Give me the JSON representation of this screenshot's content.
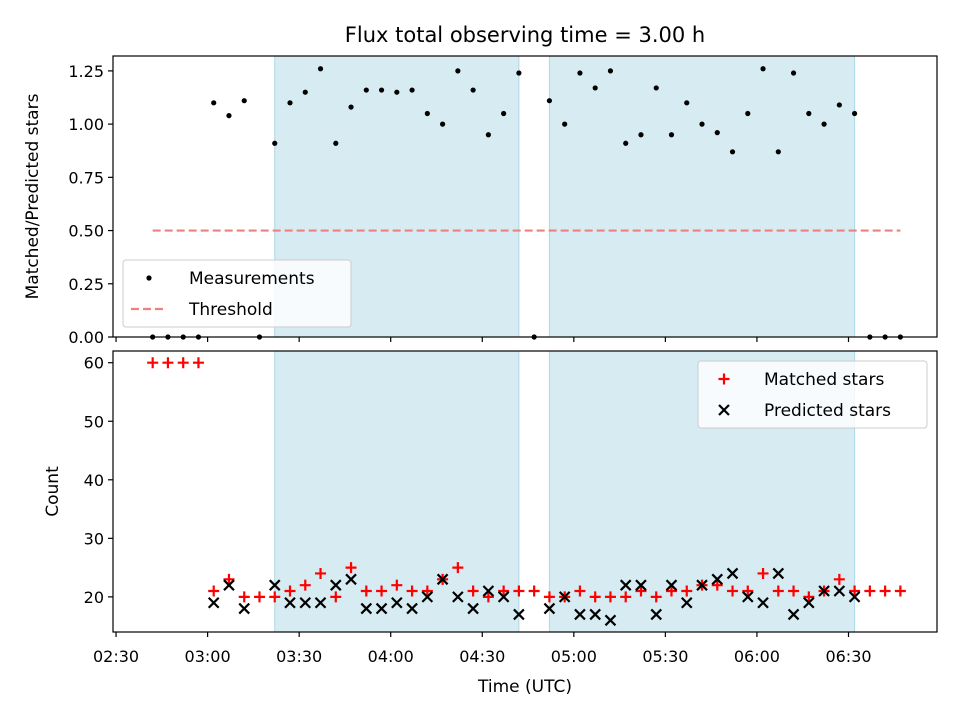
{
  "chart_data": {
    "type": "scatter",
    "title": "Flux total observing time = 3.00 h",
    "xlabel": "Time (UTC)",
    "xlim": [
      "02:29",
      "06:59"
    ],
    "x_ticks": [
      "02:30",
      "03:00",
      "03:30",
      "04:00",
      "04:30",
      "05:00",
      "05:30",
      "06:00",
      "06:30"
    ],
    "shaded_intervals": [
      [
        "03:22",
        "04:42"
      ],
      [
        "04:52",
        "06:32"
      ],
      [
        "color",
        "#add8e6"
      ]
    ],
    "panels": [
      {
        "ylabel": "Matched/Predicted stars",
        "ylim": [
          0,
          1.32
        ],
        "y_ticks": [
          "0.00",
          "0.25",
          "0.50",
          "0.75",
          "1.00",
          "1.25"
        ],
        "legend_position": "lower-left",
        "series": [
          {
            "name": "Measurements",
            "marker": "dot",
            "color": "#000000",
            "points": [
              [
                "02:42",
                0
              ],
              [
                "02:47",
                0
              ],
              [
                "02:52",
                0
              ],
              [
                "02:57",
                0
              ],
              [
                "03:02",
                1.1
              ],
              [
                "03:07",
                1.04
              ],
              [
                "03:12",
                1.11
              ],
              [
                "03:17",
                0
              ],
              [
                "03:22",
                0.91
              ],
              [
                "03:27",
                1.1
              ],
              [
                "03:32",
                1.15
              ],
              [
                "03:37",
                1.26
              ],
              [
                "03:42",
                0.91
              ],
              [
                "03:47",
                1.08
              ],
              [
                "03:52",
                1.16
              ],
              [
                "03:57",
                1.16
              ],
              [
                "04:02",
                1.15
              ],
              [
                "04:07",
                1.16
              ],
              [
                "04:12",
                1.05
              ],
              [
                "04:17",
                1.0
              ],
              [
                "04:22",
                1.25
              ],
              [
                "04:27",
                1.16
              ],
              [
                "04:32",
                0.95
              ],
              [
                "04:37",
                1.05
              ],
              [
                "04:42",
                1.24
              ],
              [
                "04:47",
                0
              ],
              [
                "04:52",
                1.11
              ],
              [
                "04:57",
                1.0
              ],
              [
                "05:02",
                1.24
              ],
              [
                "05:07",
                1.17
              ],
              [
                "05:12",
                1.25
              ],
              [
                "05:17",
                0.91
              ],
              [
                "05:22",
                0.95
              ],
              [
                "05:27",
                1.17
              ],
              [
                "05:32",
                0.95
              ],
              [
                "05:37",
                1.1
              ],
              [
                "05:42",
                1.0
              ],
              [
                "05:47",
                0.96
              ],
              [
                "05:52",
                0.87
              ],
              [
                "05:57",
                1.05
              ],
              [
                "06:02",
                1.26
              ],
              [
                "06:07",
                0.87
              ],
              [
                "06:12",
                1.24
              ],
              [
                "06:17",
                1.05
              ],
              [
                "06:22",
                1.0
              ],
              [
                "06:27",
                1.09
              ],
              [
                "06:32",
                1.05
              ],
              [
                "06:37",
                0
              ],
              [
                "06:42",
                0
              ],
              [
                "06:47",
                0
              ]
            ]
          },
          {
            "name": "Threshold",
            "marker": "dashed-line",
            "color": "#f08080",
            "points": [
              [
                "02:42",
                0.5
              ],
              [
                "06:47",
                0.5
              ]
            ]
          }
        ]
      },
      {
        "ylabel": "Count",
        "ylim": [
          14,
          62
        ],
        "y_ticks": [
          "20",
          "30",
          "40",
          "50",
          "60"
        ],
        "legend_position": "upper-right",
        "series": [
          {
            "name": "Matched stars",
            "marker": "plus",
            "color": "#ff0000",
            "points": [
              [
                "02:42",
                60
              ],
              [
                "02:47",
                60
              ],
              [
                "02:52",
                60
              ],
              [
                "02:57",
                60
              ],
              [
                "03:02",
                21
              ],
              [
                "03:07",
                23
              ],
              [
                "03:12",
                20
              ],
              [
                "03:17",
                20
              ],
              [
                "03:22",
                20
              ],
              [
                "03:27",
                21
              ],
              [
                "03:32",
                22
              ],
              [
                "03:37",
                24
              ],
              [
                "03:42",
                20
              ],
              [
                "03:47",
                25
              ],
              [
                "03:52",
                21
              ],
              [
                "03:57",
                21
              ],
              [
                "04:02",
                22
              ],
              [
                "04:07",
                21
              ],
              [
                "04:12",
                21
              ],
              [
                "04:17",
                23
              ],
              [
                "04:22",
                25
              ],
              [
                "04:27",
                21
              ],
              [
                "04:32",
                20
              ],
              [
                "04:37",
                21
              ],
              [
                "04:42",
                21
              ],
              [
                "04:47",
                21
              ],
              [
                "04:52",
                20
              ],
              [
                "04:57",
                20
              ],
              [
                "05:02",
                21
              ],
              [
                "05:07",
                20
              ],
              [
                "05:12",
                20
              ],
              [
                "05:17",
                20
              ],
              [
                "05:22",
                21
              ],
              [
                "05:27",
                20
              ],
              [
                "05:32",
                21
              ],
              [
                "05:37",
                21
              ],
              [
                "05:42",
                22
              ],
              [
                "05:47",
                22
              ],
              [
                "05:52",
                21
              ],
              [
                "05:57",
                21
              ],
              [
                "06:02",
                24
              ],
              [
                "06:07",
                21
              ],
              [
                "06:12",
                21
              ],
              [
                "06:17",
                20
              ],
              [
                "06:22",
                21
              ],
              [
                "06:27",
                23
              ],
              [
                "06:32",
                21
              ],
              [
                "06:37",
                21
              ],
              [
                "06:42",
                21
              ],
              [
                "06:47",
                21
              ]
            ]
          },
          {
            "name": "Predicted stars",
            "marker": "x",
            "color": "#000000",
            "points": [
              [
                "03:02",
                19
              ],
              [
                "03:07",
                22
              ],
              [
                "03:12",
                18
              ],
              [
                "03:22",
                22
              ],
              [
                "03:27",
                19
              ],
              [
                "03:32",
                19
              ],
              [
                "03:37",
                19
              ],
              [
                "03:42",
                22
              ],
              [
                "03:47",
                23
              ],
              [
                "03:52",
                18
              ],
              [
                "03:57",
                18
              ],
              [
                "04:02",
                19
              ],
              [
                "04:07",
                18
              ],
              [
                "04:12",
                20
              ],
              [
                "04:17",
                23
              ],
              [
                "04:22",
                20
              ],
              [
                "04:27",
                18
              ],
              [
                "04:32",
                21
              ],
              [
                "04:37",
                20
              ],
              [
                "04:42",
                17
              ],
              [
                "04:52",
                18
              ],
              [
                "04:57",
                20
              ],
              [
                "05:02",
                17
              ],
              [
                "05:07",
                17
              ],
              [
                "05:12",
                16
              ],
              [
                "05:17",
                22
              ],
              [
                "05:22",
                22
              ],
              [
                "05:27",
                17
              ],
              [
                "05:32",
                22
              ],
              [
                "05:37",
                19
              ],
              [
                "05:42",
                22
              ],
              [
                "05:47",
                23
              ],
              [
                "05:52",
                24
              ],
              [
                "05:57",
                20
              ],
              [
                "06:02",
                19
              ],
              [
                "06:07",
                24
              ],
              [
                "06:12",
                17
              ],
              [
                "06:17",
                19
              ],
              [
                "06:22",
                21
              ],
              [
                "06:27",
                21
              ],
              [
                "06:32",
                20
              ]
            ]
          }
        ]
      }
    ]
  }
}
